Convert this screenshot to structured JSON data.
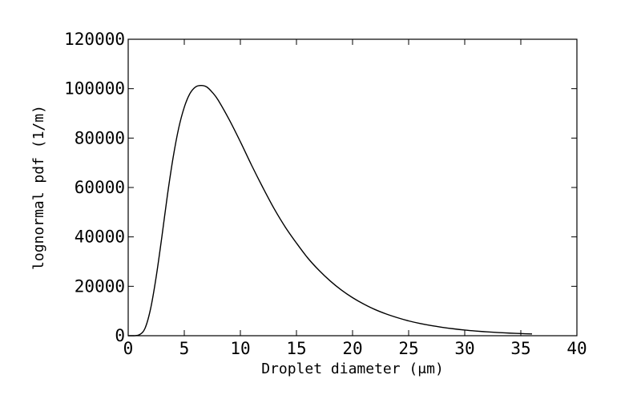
{
  "chart_data": {
    "type": "line",
    "title": "",
    "xlabel": "Droplet diameter (μm)",
    "ylabel": "lognormal pdf (1/m)",
    "xlim": [
      0,
      40
    ],
    "ylim": [
      0,
      120000
    ],
    "xticks": [
      "0",
      "5",
      "10",
      "15",
      "20",
      "25",
      "30",
      "35",
      "40"
    ],
    "yticks": [
      "0",
      "20000",
      "40000",
      "60000",
      "80000",
      "100000",
      "120000"
    ],
    "grid": false,
    "legend": "none",
    "line_color": "#000000",
    "series": [
      {
        "x": [
          0,
          0.5,
          1,
          1.5,
          2,
          2.5,
          3,
          3.5,
          4,
          4.5,
          5,
          5.5,
          6,
          6.5,
          7,
          7.5,
          8,
          9,
          10,
          11,
          12,
          13,
          14,
          15,
          16,
          17,
          18,
          19,
          20,
          21,
          22,
          23,
          24,
          25,
          26,
          27,
          28,
          29,
          30,
          31,
          32,
          33,
          34,
          35,
          36
        ],
        "y": [
          0,
          0,
          400,
          3000,
          11000,
          24000,
          40000,
          57000,
          72000,
          84000,
          92500,
          98000,
          100700,
          101300,
          100700,
          98500,
          95500,
          87500,
          78500,
          69000,
          60000,
          51500,
          44000,
          37500,
          31500,
          26500,
          22200,
          18500,
          15400,
          12800,
          10600,
          8800,
          7300,
          6000,
          4950,
          4100,
          3400,
          2800,
          2300,
          1900,
          1550,
          1280,
          1050,
          870,
          700
        ]
      }
    ]
  }
}
